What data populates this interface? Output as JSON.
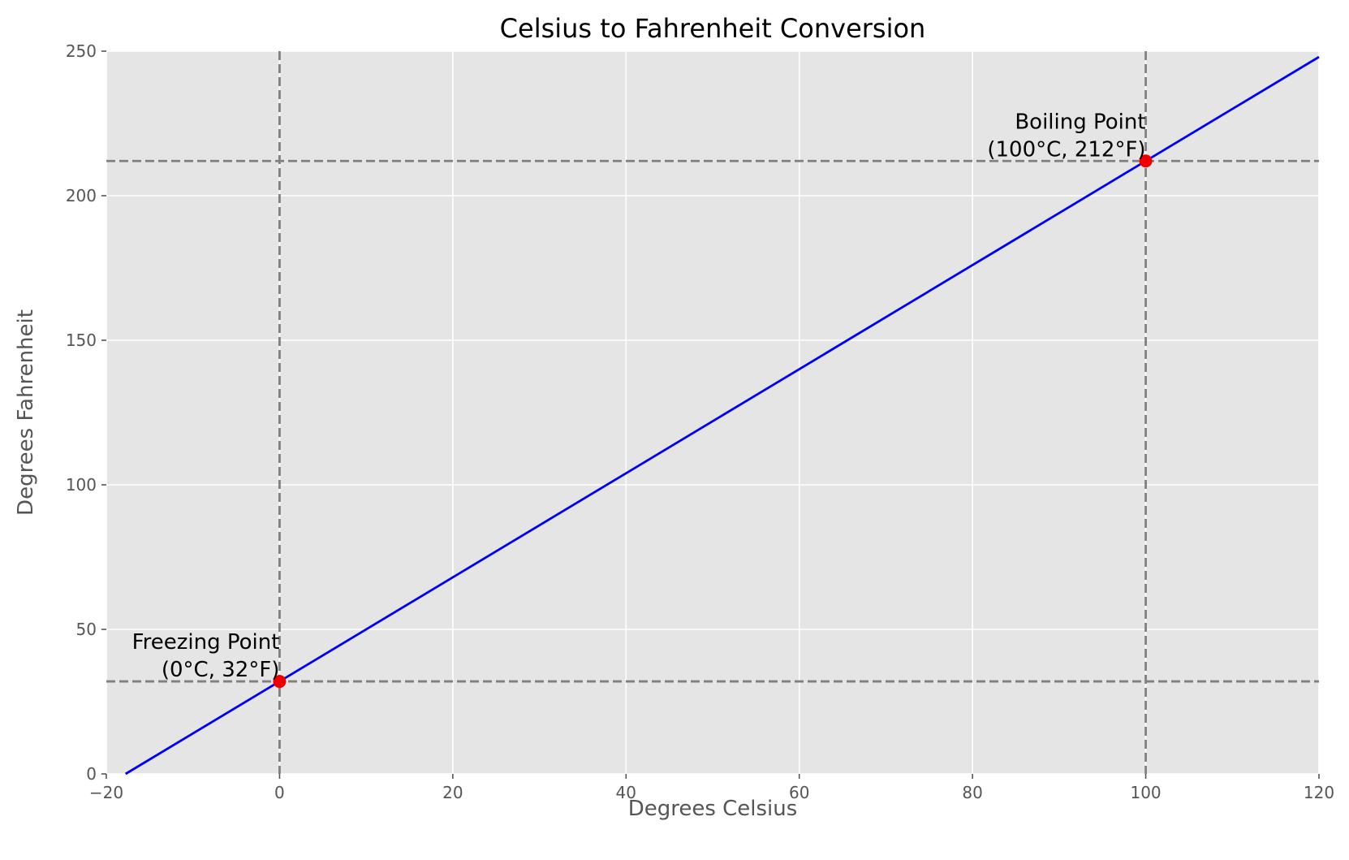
{
  "chart_data": {
    "type": "line",
    "title": "Celsius to Fahrenheit Conversion",
    "xlabel": "Degrees Celsius",
    "ylabel": "Degrees Fahrenheit",
    "xlim": [
      -20,
      120
    ],
    "ylim": [
      0,
      250
    ],
    "x_ticks": [
      -20,
      0,
      20,
      40,
      60,
      80,
      100,
      120
    ],
    "x_tick_labels": [
      "−20",
      "0",
      "20",
      "40",
      "60",
      "80",
      "100",
      "120"
    ],
    "y_ticks": [
      0,
      50,
      100,
      150,
      200,
      250
    ],
    "y_tick_labels": [
      "0",
      "50",
      "100",
      "150",
      "200",
      "250"
    ],
    "grid": true,
    "series": [
      {
        "color": "#0000ee",
        "x": [
          -17.78,
          120
        ],
        "y": [
          0,
          248
        ]
      }
    ],
    "points": [
      {
        "x": 0,
        "y": 32,
        "color": "#ee0000"
      },
      {
        "x": 100,
        "y": 212,
        "color": "#ee0000"
      }
    ],
    "reference_lines": {
      "vertical": [
        0,
        100
      ],
      "horizontal": [
        32,
        212
      ],
      "color": "#808080",
      "style": "dashed"
    },
    "annotations": [
      {
        "lines": [
          "Freezing Point",
          "(0°C, 32°F)"
        ],
        "x": 0,
        "y": 32
      },
      {
        "lines": [
          "Boiling Point",
          "(100°C, 212°F)"
        ],
        "x": 100,
        "y": 212
      }
    ],
    "colors": {
      "plot_background": "#e5e5e5",
      "grid": "#ffffff"
    }
  }
}
